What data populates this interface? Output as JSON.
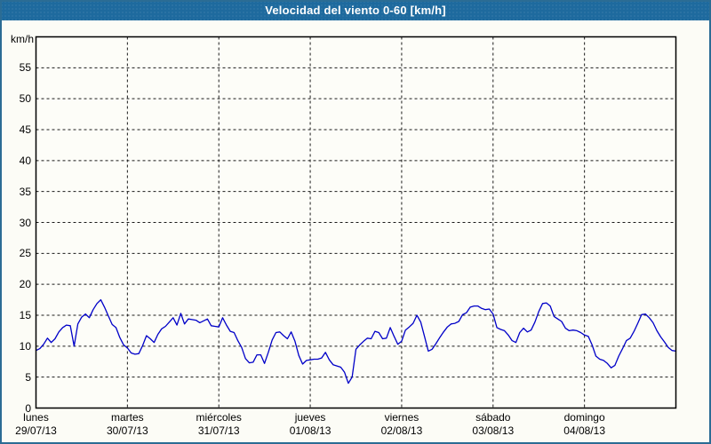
{
  "window": {
    "title": "Velocidad del viento 0-60 [km/h]"
  },
  "colors": {
    "titlebar_bg": "#1e6a9e",
    "titlebar_text": "#ffffff",
    "window_border": "#2b6c94",
    "window_bg": "#fcfcf6",
    "plot_bg": "#fdfdf8",
    "plot_frame": "#000000",
    "gridline": "#1a1a1a",
    "series_line": "#0000c8",
    "tick_text": "#000000"
  },
  "chart_data": {
    "type": "line",
    "title": "Velocidad del viento 0-60 [km/h]",
    "xlabel": "",
    "ylabel": "km/h",
    "grid": true,
    "legend": false,
    "y_axis": {
      "label": "km/h",
      "min": 0,
      "max": 60,
      "tick_step": 5,
      "ticks": [
        0,
        5,
        10,
        15,
        20,
        25,
        30,
        35,
        40,
        45,
        50,
        55
      ]
    },
    "x_axis": {
      "hours_per_day": 24,
      "days": [
        {
          "name": "lunes",
          "date": "29/07/13"
        },
        {
          "name": "martes",
          "date": "30/07/13"
        },
        {
          "name": "miércoles",
          "date": "31/07/13"
        },
        {
          "name": "jueves",
          "date": "01/08/13"
        },
        {
          "name": "viernes",
          "date": "02/08/13"
        },
        {
          "name": "sábado",
          "date": "03/08/13"
        },
        {
          "name": "domingo",
          "date": "04/08/13"
        }
      ]
    },
    "series": [
      {
        "name": "Velocidad del viento",
        "unit": "km/h",
        "sample_interval_hours": 1,
        "values": [
          9.3,
          9.6,
          10.3,
          11.3,
          10.6,
          11.2,
          12.3,
          13.0,
          13.4,
          13.3,
          10.0,
          13.6,
          14.7,
          15.2,
          14.6,
          15.9,
          16.9,
          17.5,
          16.3,
          14.9,
          13.5,
          13.0,
          11.4,
          10.2,
          9.7,
          8.9,
          8.7,
          8.8,
          10.1,
          11.7,
          11.2,
          10.6,
          11.9,
          12.8,
          13.2,
          13.9,
          14.6,
          13.4,
          15.3,
          13.6,
          14.4,
          14.3,
          14.2,
          13.8,
          14.1,
          14.4,
          13.3,
          13.2,
          13.1,
          14.6,
          13.4,
          12.4,
          12.2,
          10.9,
          9.8,
          8.0,
          7.3,
          7.4,
          8.6,
          8.6,
          7.2,
          9.0,
          11.0,
          12.2,
          12.3,
          11.7,
          11.2,
          12.3,
          10.8,
          8.5,
          7.1,
          7.7,
          7.8,
          7.9,
          7.9,
          8.1,
          9.0,
          7.8,
          7.0,
          6.8,
          6.6,
          5.8,
          4.0,
          5.0,
          9.5,
          10.2,
          10.8,
          11.3,
          11.2,
          12.4,
          12.2,
          11.2,
          11.3,
          13.0,
          11.6,
          10.3,
          10.8,
          12.6,
          13.1,
          13.7,
          15.0,
          13.9,
          11.6,
          9.2,
          9.5,
          10.4,
          11.4,
          12.3,
          13.1,
          13.6,
          13.7,
          14.0,
          15.1,
          15.4,
          16.3,
          16.5,
          16.5,
          16.1,
          15.9,
          16.0,
          15.2,
          13.0,
          12.7,
          12.5,
          11.8,
          10.9,
          10.6,
          12.2,
          12.9,
          12.3,
          12.6,
          13.9,
          15.6,
          16.9,
          17.0,
          16.5,
          14.8,
          14.4,
          14.0,
          12.9,
          12.5,
          12.6,
          12.5,
          12.2,
          11.8,
          11.6,
          10.2,
          8.4,
          7.9,
          7.7,
          7.2,
          6.5,
          6.9,
          8.4,
          9.6,
          10.9,
          11.3,
          12.4,
          13.7,
          15.1,
          15.2,
          14.6,
          13.8,
          12.5,
          11.5,
          10.7,
          9.8,
          9.3,
          9.2
        ]
      }
    ]
  }
}
